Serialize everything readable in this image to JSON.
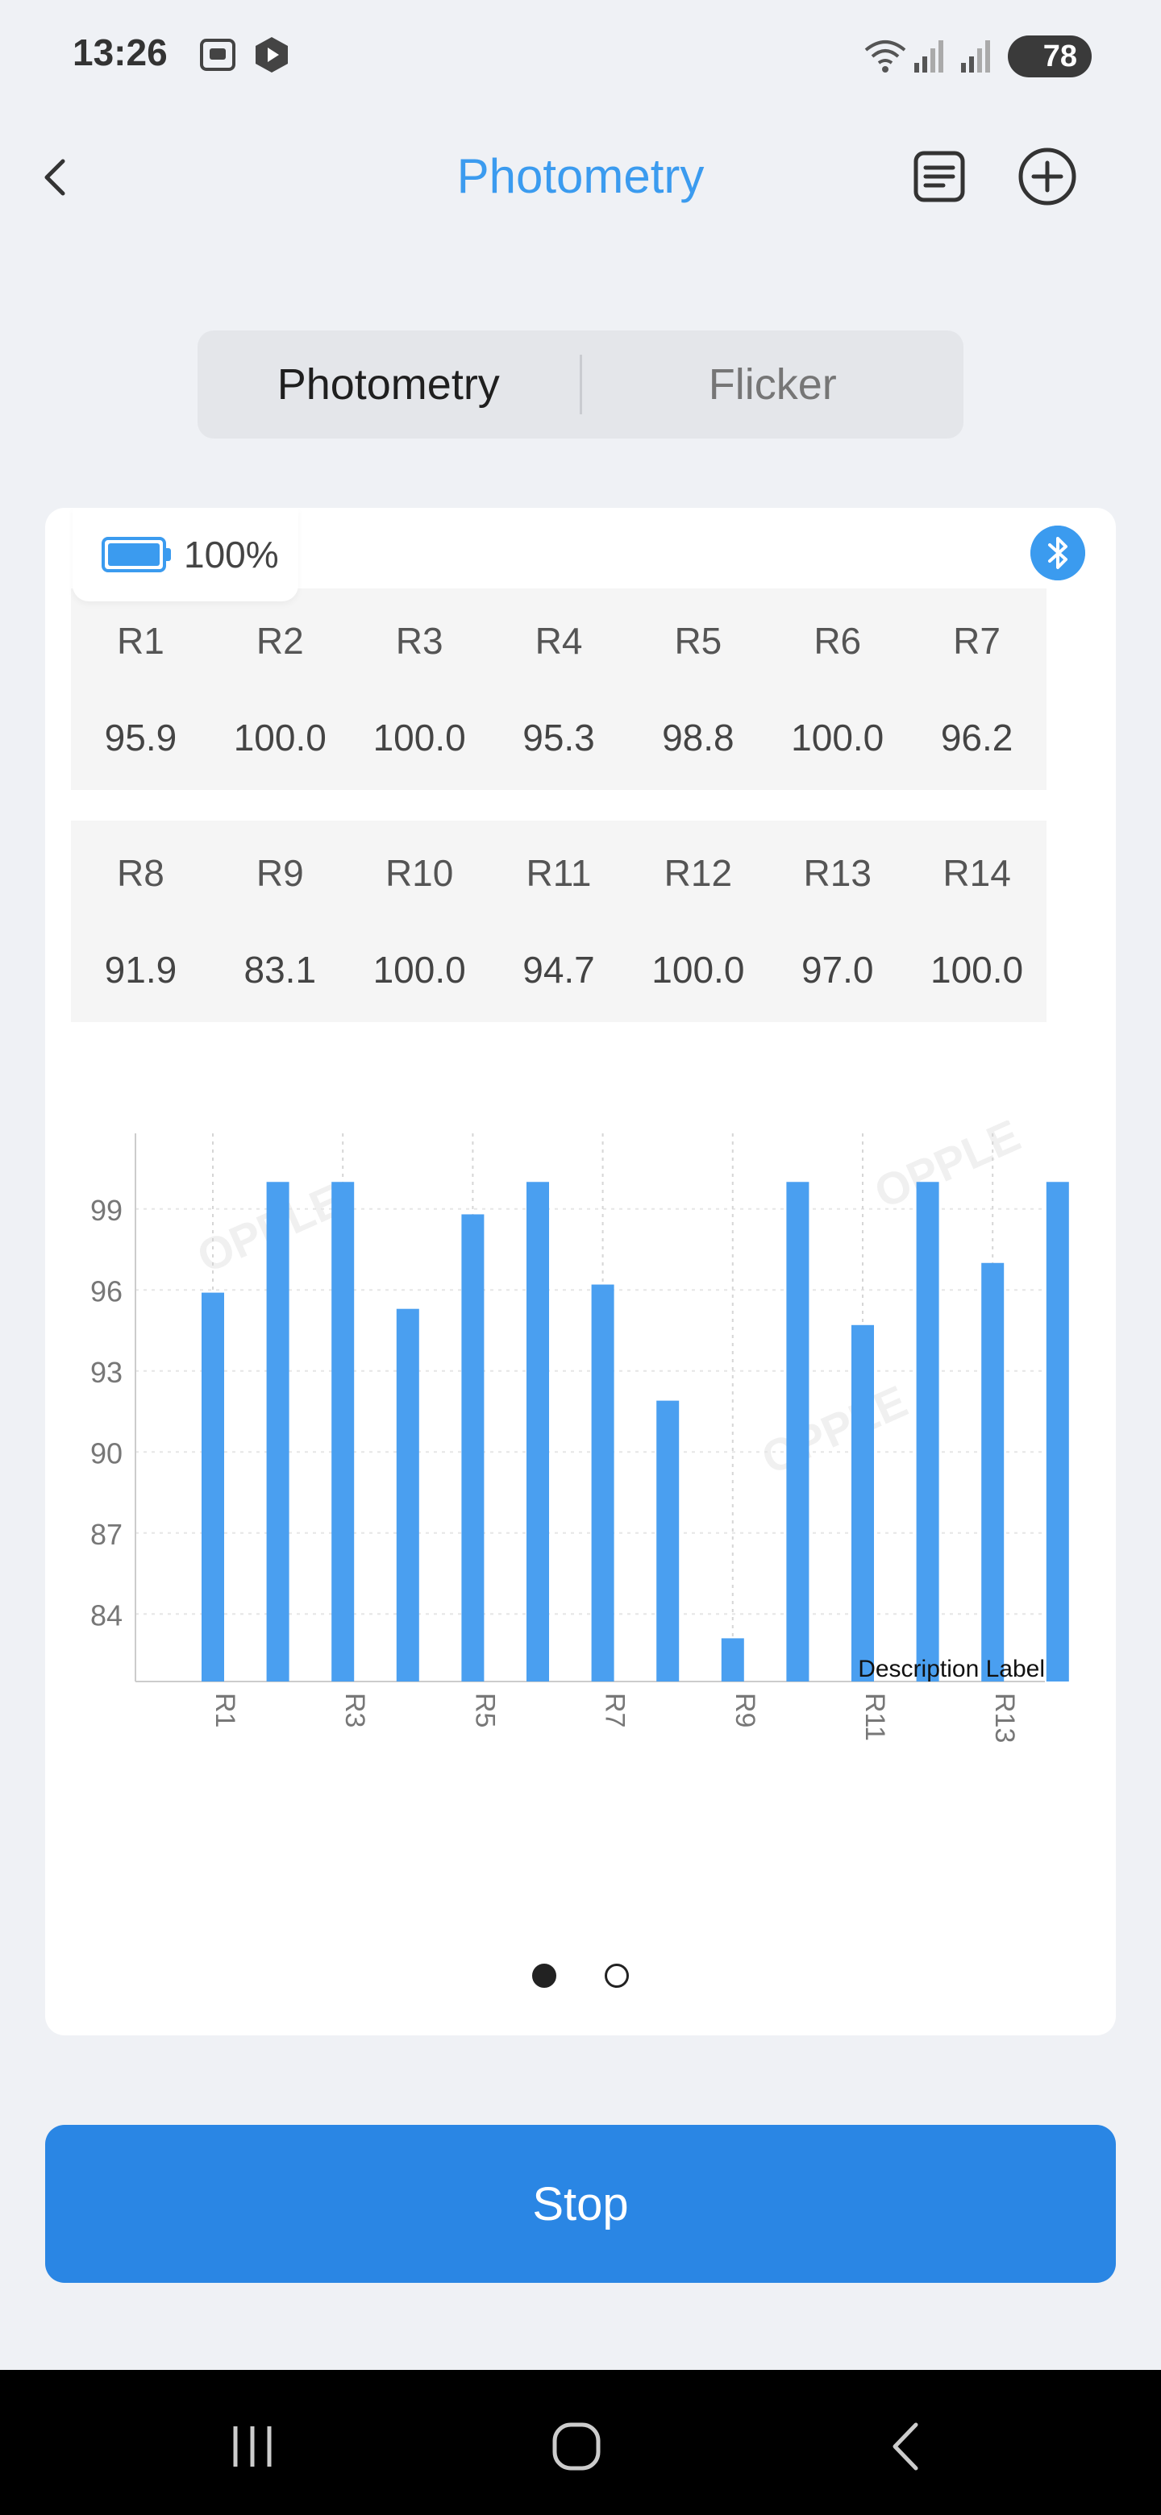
{
  "status": {
    "time": "13:26",
    "battery": "78"
  },
  "header": {
    "title": "Photometry",
    "back_icon": "chevron-left-icon",
    "doc_icon": "document-icon",
    "add_icon": "plus-circle-icon"
  },
  "tabs": [
    {
      "label": "Photometry",
      "active": true
    },
    {
      "label": "Flicker",
      "active": false
    }
  ],
  "device": {
    "battery": "100%",
    "bluetooth_icon": "bluetooth-icon"
  },
  "r_row1": [
    {
      "name": "R1",
      "value": "95.9"
    },
    {
      "name": "R2",
      "value": "100.0"
    },
    {
      "name": "R3",
      "value": "100.0"
    },
    {
      "name": "R4",
      "value": "95.3"
    },
    {
      "name": "R5",
      "value": "98.8"
    },
    {
      "name": "R6",
      "value": "100.0"
    },
    {
      "name": "R7",
      "value": "96.2"
    }
  ],
  "r_row2": [
    {
      "name": "R8",
      "value": "91.9"
    },
    {
      "name": "R9",
      "value": "83.1"
    },
    {
      "name": "R10",
      "value": "100.0"
    },
    {
      "name": "R11",
      "value": "94.7"
    },
    {
      "name": "R12",
      "value": "100.0"
    },
    {
      "name": "R13",
      "value": "97.0"
    },
    {
      "name": "R14",
      "value": "100.0"
    }
  ],
  "chart_data": {
    "type": "bar",
    "categories": [
      "R1",
      "R2",
      "R3",
      "R4",
      "R5",
      "R6",
      "R7",
      "R8",
      "R9",
      "R10",
      "R11",
      "R12",
      "R13",
      "R14"
    ],
    "x_tick_labels": [
      "R1",
      "R3",
      "R5",
      "R7",
      "R9",
      "R11",
      "R13"
    ],
    "values": [
      95.9,
      100.0,
      100.0,
      95.3,
      98.8,
      100.0,
      96.2,
      91.9,
      83.1,
      100.0,
      94.7,
      100.0,
      97.0,
      100.0
    ],
    "y_ticks": [
      "99",
      "96",
      "93",
      "90",
      "87",
      "84"
    ],
    "ylim": [
      81.5,
      101.5
    ],
    "description": "Description Label",
    "watermark": "OPPLE",
    "bar_color": "#4a9ff0"
  },
  "pager": {
    "count": 2,
    "active": 0
  },
  "stop_button": {
    "label": "Stop"
  },
  "colors": {
    "accent": "#3b9bef",
    "button": "#2a86e4",
    "background": "#eff1f5"
  }
}
